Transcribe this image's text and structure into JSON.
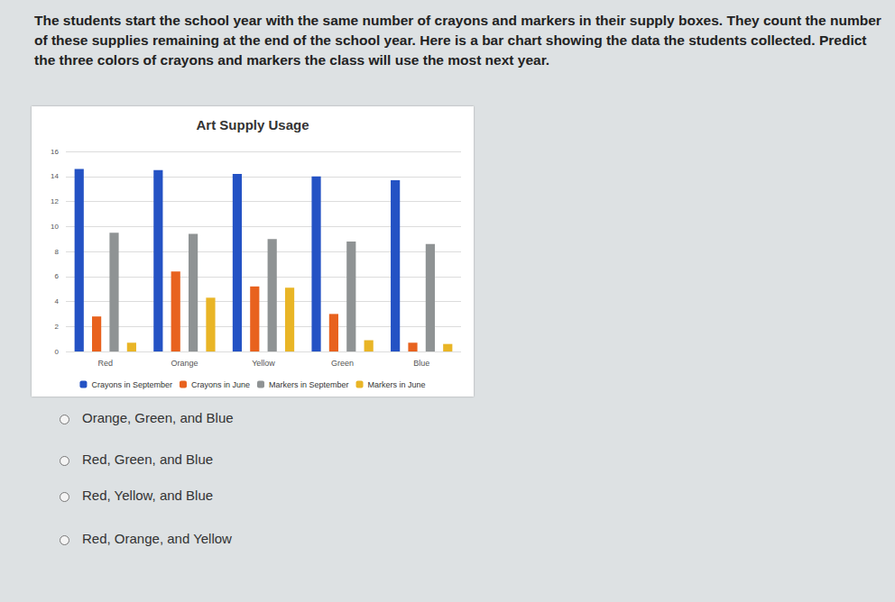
{
  "question": "The students start the school year with the same number of crayons and markers in their supply boxes. They count the number of these supplies remaining at the end of the school year. Here is a bar chart showing the data the students collected. Predict the three colors of crayons and markers the class will use the most next year.",
  "chart_data": {
    "type": "bar",
    "title": "Art Supply Usage",
    "categories": [
      "Red",
      "Orange",
      "Yellow",
      "Green",
      "Blue"
    ],
    "series": [
      {
        "name": "Crayons in September",
        "color": "#2452c4",
        "values": [
          14.6,
          14.5,
          14.2,
          14,
          13.7
        ]
      },
      {
        "name": "Crayons in June",
        "color": "#e8621e",
        "values": [
          2.8,
          6.4,
          5.2,
          3,
          0.7
        ]
      },
      {
        "name": "Markers in September",
        "color": "#8f9394",
        "values": [
          9.5,
          9.4,
          9,
          8.8,
          8.6
        ]
      },
      {
        "name": "Markers in June",
        "color": "#e9b526",
        "values": [
          0.7,
          4.3,
          5.1,
          0.9,
          0.6
        ]
      }
    ],
    "ylim": [
      0,
      16
    ],
    "yticks": [
      0,
      2,
      4,
      6,
      8,
      10,
      12,
      14,
      16
    ],
    "grid": true,
    "legend": "bottom"
  },
  "options": [
    "Orange, Green, and Blue",
    "Red, Green, and Blue",
    "Red, Yellow, and Blue",
    "Red, Orange, and Yellow"
  ]
}
